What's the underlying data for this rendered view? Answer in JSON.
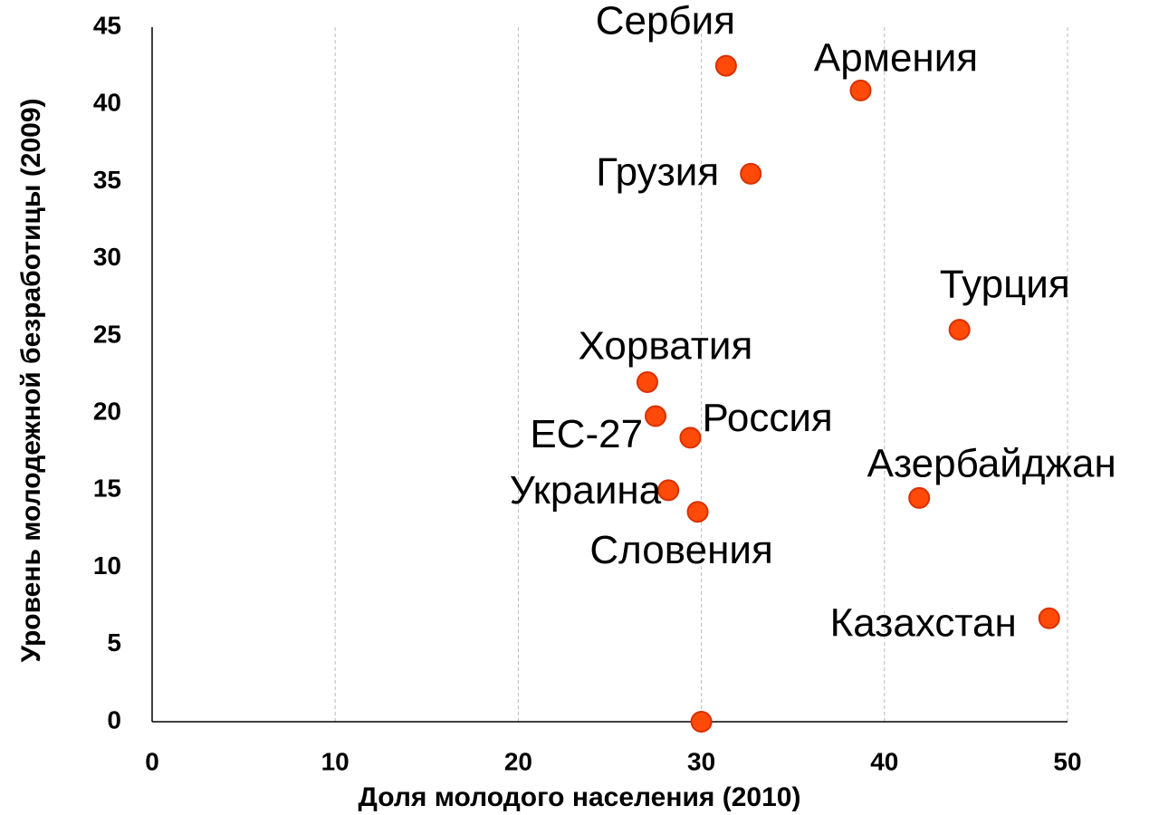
{
  "chart_data": {
    "type": "scatter",
    "xlabel": "Доля молодого населения (2010)",
    "ylabel": "Уровень молодежной безработицы (2009)",
    "labels": [
      "Сербия",
      "Армения",
      "Грузия",
      "Турция",
      "Хорватия",
      "ЕС-27",
      "Россия",
      "Азербайджан",
      "Украина",
      "Словения",
      "Казахстан",
      null
    ],
    "x": [
      31.35,
      38.7,
      32.7,
      44.1,
      27.05,
      27.5,
      29.4,
      41.9,
      28.2,
      29.8,
      49.0,
      30.0
    ],
    "y": [
      42.5,
      40.9,
      35.5,
      25.4,
      22.0,
      19.8,
      18.4,
      14.5,
      15.0,
      13.6,
      6.7,
      0
    ],
    "color": "#ff4a0a",
    "xlim": [
      0,
      50
    ],
    "xticks": [
      0,
      10,
      20,
      30,
      40,
      50
    ],
    "ylim": [
      0,
      45
    ],
    "yticks": [
      0,
      5,
      10,
      15,
      20,
      25,
      30,
      35,
      40,
      45
    ],
    "grid": "x"
  }
}
